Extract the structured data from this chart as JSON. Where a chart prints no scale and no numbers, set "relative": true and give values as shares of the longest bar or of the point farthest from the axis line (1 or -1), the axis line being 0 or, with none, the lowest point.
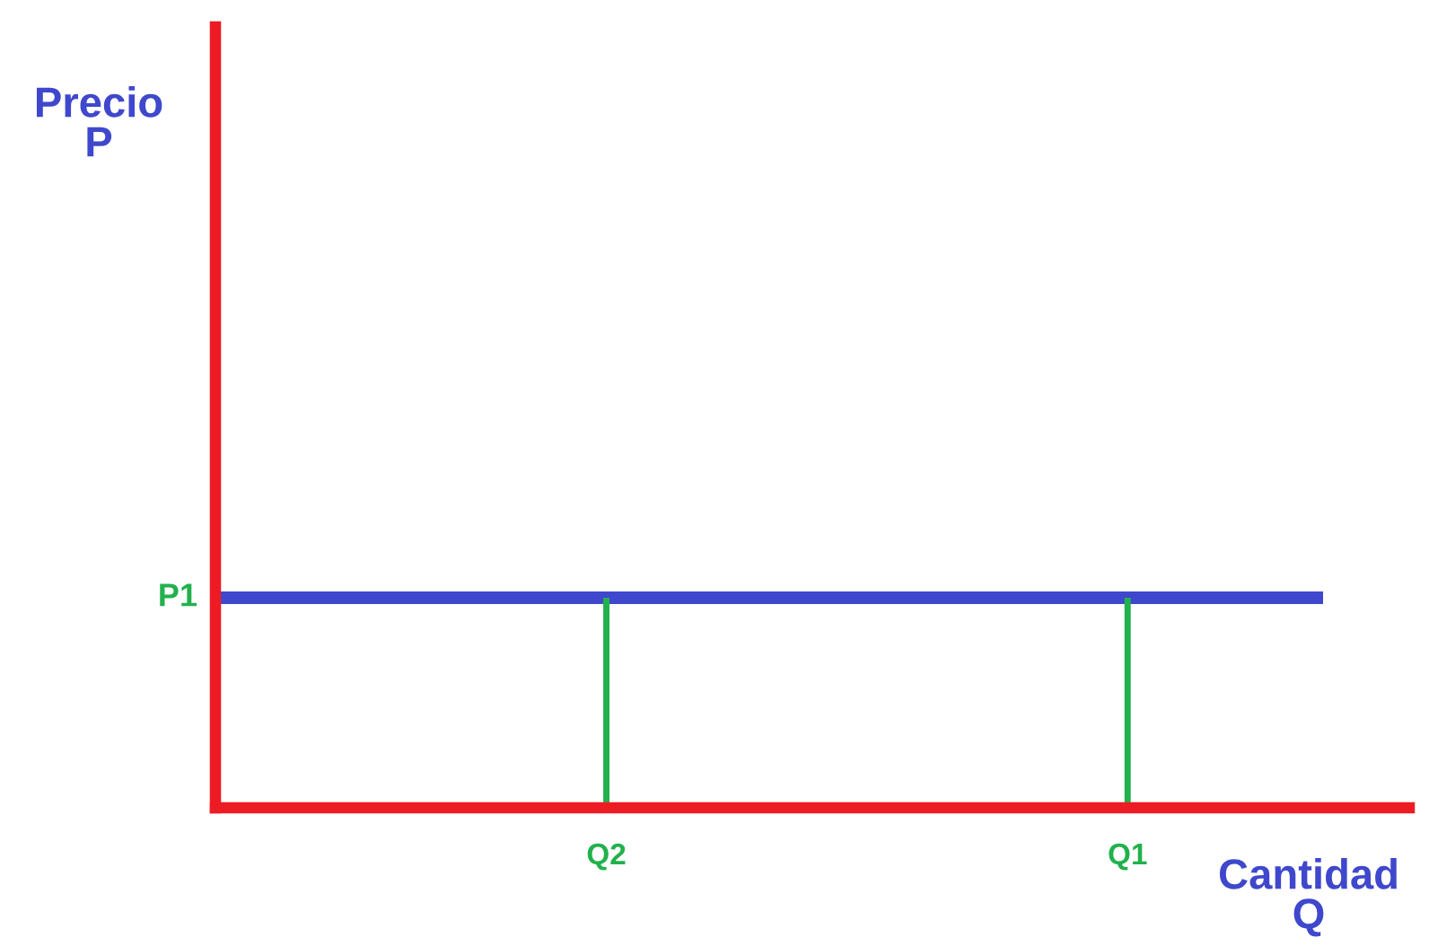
{
  "chart_data": {
    "type": "line",
    "relative": true,
    "xlabel": "Cantidad\nQ",
    "categories": [
      null,
      null,
      null,
      null,
      null,
      null,
      "Q2",
      null,
      null,
      null,
      null,
      null,
      null,
      null,
      "Q1",
      null,
      null,
      null
    ],
    "series": [
      {
        "color": "#3f48cc",
        "values": [
          1,
          1,
          1,
          1,
          1,
          1,
          1,
          1,
          1,
          1,
          1,
          1,
          1,
          1,
          1,
          1,
          1,
          1
        ]
      },
      {
        "color": "#22b14c",
        "x": [
          "Q2",
          "Q2"
        ],
        "values": [
          0,
          1
        ]
      },
      {
        "color": "#22b14c",
        "x": [
          "Q1",
          "Q1"
        ],
        "values": [
          0,
          1
        ]
      }
    ],
    "annotations": [
      "P1",
      "Precio\nP"
    ]
  }
}
